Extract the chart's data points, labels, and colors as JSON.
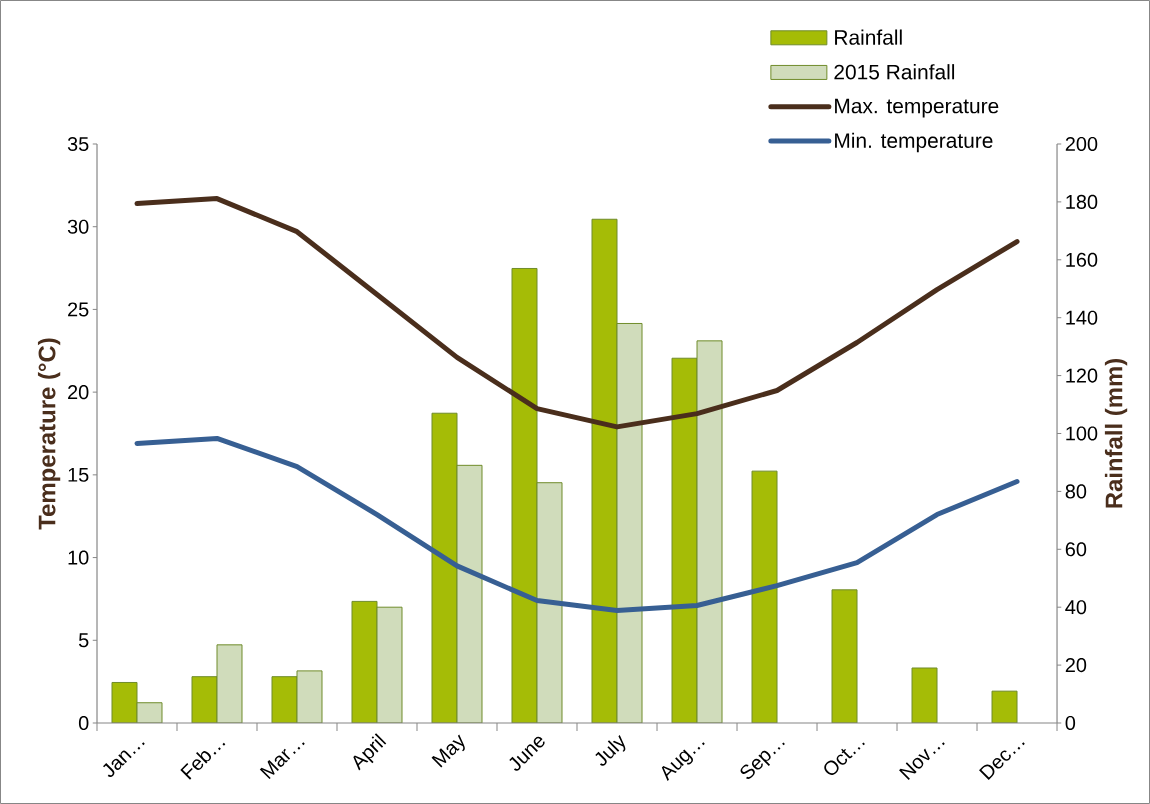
{
  "chart_data": {
    "type": "bar",
    "ylabel": "Temperature (°C)",
    "y2label": "Rainfall (mm)",
    "categories": [
      "Jan…",
      "Feb…",
      "Mar…",
      "April",
      "May",
      "June",
      "July",
      "Aug…",
      "Sep…",
      "Oct…",
      "Nov…",
      "Dec…"
    ],
    "series": [
      {
        "name": "Rainfall",
        "axis": "y2",
        "color": "#a5bc06",
        "values": [
          14,
          16,
          16,
          42,
          107,
          157,
          174,
          126,
          87,
          46,
          19,
          11
        ]
      },
      {
        "name": "2015 Rainfall",
        "axis": "y2",
        "color": "#d0dcbb",
        "values": [
          7,
          27,
          18,
          40,
          89,
          83,
          138,
          132,
          null,
          null,
          null,
          null
        ]
      },
      {
        "name": "Max. temperature",
        "type": "line",
        "axis": "y",
        "color": "#4a2e1c",
        "values": [
          31.4,
          31.7,
          29.7,
          25.9,
          22.1,
          19.0,
          17.9,
          18.7,
          20.1,
          23.0,
          26.2,
          29.1
        ]
      },
      {
        "name": "Min. temperature",
        "type": "line",
        "axis": "y",
        "color": "#375f93",
        "values": [
          16.9,
          17.2,
          15.5,
          12.6,
          9.5,
          7.4,
          6.8,
          7.1,
          8.3,
          9.7,
          12.6,
          14.6
        ]
      }
    ],
    "ylim": [
      0,
      35
    ],
    "yticks": [
      0,
      5,
      10,
      15,
      20,
      25,
      30,
      35
    ],
    "y2lim": [
      0,
      200
    ],
    "y2ticks": [
      0,
      20,
      40,
      60,
      80,
      100,
      120,
      140,
      160,
      180,
      200
    ],
    "legend": "top right",
    "grid": false
  }
}
